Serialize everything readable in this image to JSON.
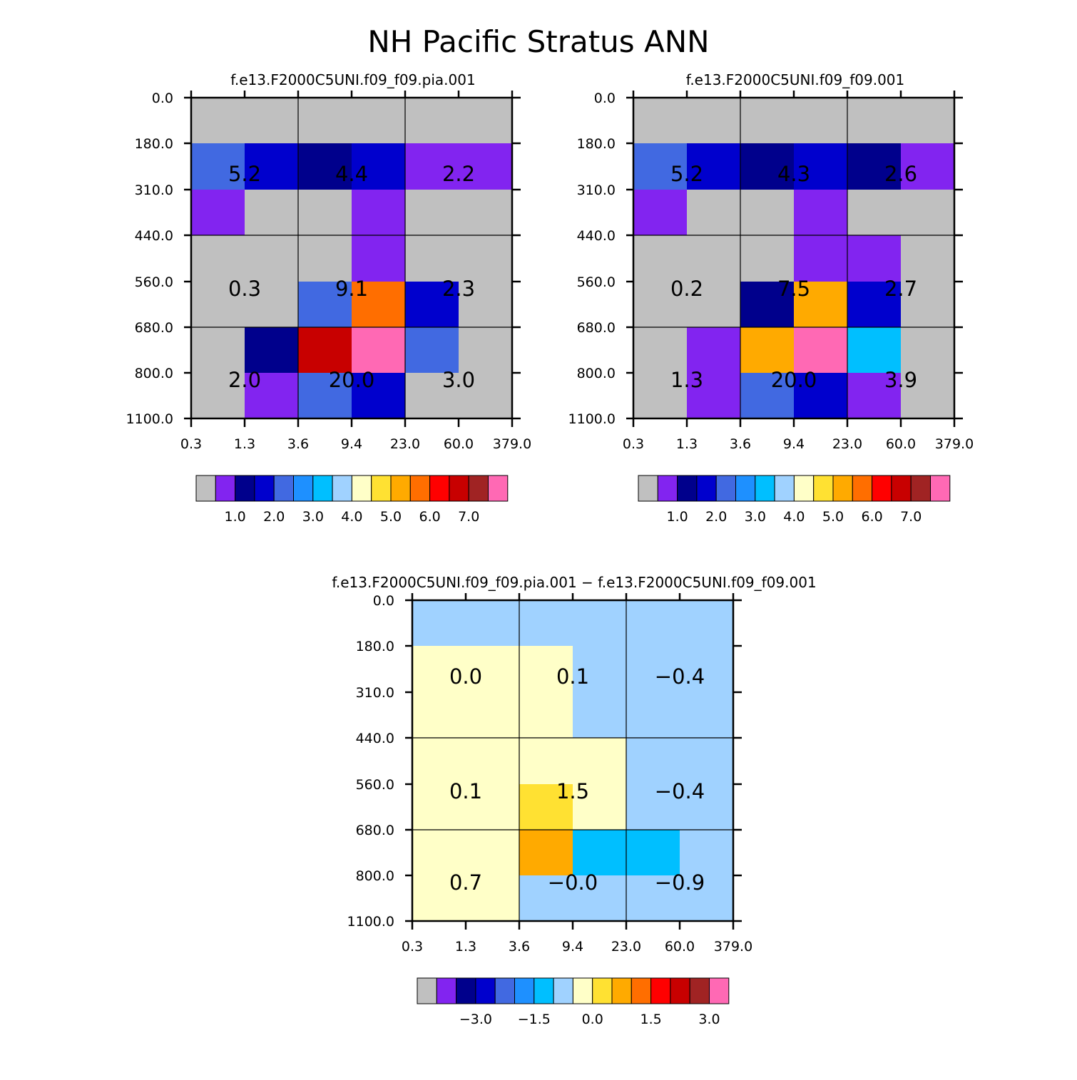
{
  "page_title": "NH Pacific Stratus ANN",
  "color_palette": [
    "#c0c0c0",
    "#8224f0",
    "#00008c",
    "#0000cd",
    "#4169e1",
    "#1e90ff",
    "#00bfff",
    "#a0d2ff",
    "#ffffc8",
    "#ffe132",
    "#ffaa00",
    "#ff6e00",
    "#ff0000",
    "#c80000",
    "#a02323",
    "#ff69b4"
  ],
  "chart_data": [
    {
      "type": "heatmap",
      "title": "f.e13.F2000C5UNI.f09_f09.pia.001",
      "x_ticks": [
        "0.3",
        "1.3",
        "3.6",
        "9.4",
        "23.0",
        "60.0",
        "379.0"
      ],
      "y_ticks": [
        "0.0",
        "180.0",
        "310.0",
        "440.0",
        "560.0",
        "680.0",
        "800.0",
        "1100.0"
      ],
      "cells": [
        [
          0,
          0,
          0,
          0,
          0,
          0
        ],
        [
          4,
          3,
          2,
          3,
          1,
          1
        ],
        [
          1,
          0,
          0,
          1,
          0,
          0
        ],
        [
          0,
          0,
          0,
          1,
          0,
          0
        ],
        [
          0,
          0,
          4,
          11,
          3,
          0
        ],
        [
          0,
          2,
          13,
          15,
          4,
          0
        ],
        [
          0,
          1,
          4,
          3,
          0,
          0
        ]
      ],
      "box_values": [
        [
          "",
          "",
          ""
        ],
        [
          "5.2",
          "4.4",
          "2.2"
        ],
        [
          "0.3",
          "9.1",
          "2.3"
        ],
        [
          "2.0",
          "20.0",
          "3.0"
        ]
      ],
      "box_values_grid": [
        [
          "5.2",
          "4.4",
          "2.2"
        ],
        [
          "0.3",
          "9.1",
          "2.3"
        ],
        [
          "2.0",
          "20.0",
          "3.0"
        ]
      ],
      "colorbar_labels": [
        "1.0",
        "2.0",
        "3.0",
        "4.0",
        "5.0",
        "6.0",
        "7.0"
      ]
    },
    {
      "type": "heatmap",
      "title": "f.e13.F2000C5UNI.f09_f09.001",
      "x_ticks": [
        "0.3",
        "1.3",
        "3.6",
        "9.4",
        "23.0",
        "60.0",
        "379.0"
      ],
      "y_ticks": [
        "0.0",
        "180.0",
        "310.0",
        "440.0",
        "560.0",
        "680.0",
        "800.0",
        "1100.0"
      ],
      "cells": [
        [
          0,
          0,
          0,
          0,
          0,
          0
        ],
        [
          4,
          3,
          2,
          3,
          2,
          1
        ],
        [
          1,
          0,
          0,
          1,
          0,
          0
        ],
        [
          0,
          0,
          0,
          1,
          1,
          0
        ],
        [
          0,
          0,
          2,
          10,
          3,
          0
        ],
        [
          0,
          1,
          10,
          15,
          6,
          0
        ],
        [
          0,
          1,
          4,
          3,
          1,
          0
        ]
      ],
      "box_values_grid": [
        [
          "5.2",
          "4.3",
          "2.6"
        ],
        [
          "0.2",
          "7.5",
          "2.7"
        ],
        [
          "1.3",
          "20.0",
          "3.9"
        ]
      ],
      "colorbar_labels": [
        "1.0",
        "2.0",
        "3.0",
        "4.0",
        "5.0",
        "6.0",
        "7.0"
      ]
    },
    {
      "type": "heatmap",
      "title": "f.e13.F2000C5UNI.f09_f09.pia.001 − f.e13.F2000C5UNI.f09_f09.001",
      "x_ticks": [
        "0.3",
        "1.3",
        "3.6",
        "9.4",
        "23.0",
        "60.0",
        "379.0"
      ],
      "y_ticks": [
        "0.0",
        "180.0",
        "310.0",
        "440.0",
        "560.0",
        "680.0",
        "800.0",
        "1100.0"
      ],
      "cells": [
        [
          7,
          7,
          7,
          7,
          7,
          7
        ],
        [
          8,
          8,
          8,
          7,
          7,
          7
        ],
        [
          8,
          8,
          8,
          7,
          7,
          7
        ],
        [
          8,
          8,
          8,
          8,
          7,
          7
        ],
        [
          8,
          8,
          9,
          8,
          7,
          7
        ],
        [
          8,
          8,
          10,
          6,
          6,
          7
        ],
        [
          8,
          8,
          7,
          7,
          7,
          7
        ]
      ],
      "box_values_grid": [
        [
          "0.0",
          "0.1",
          "−0.4"
        ],
        [
          "0.1",
          "1.5",
          "−0.4"
        ],
        [
          "0.7",
          "−0.0",
          "−0.9"
        ]
      ],
      "colorbar_labels": [
        "−3.0",
        "−1.5",
        "0.0",
        "1.5",
        "3.0"
      ]
    }
  ]
}
